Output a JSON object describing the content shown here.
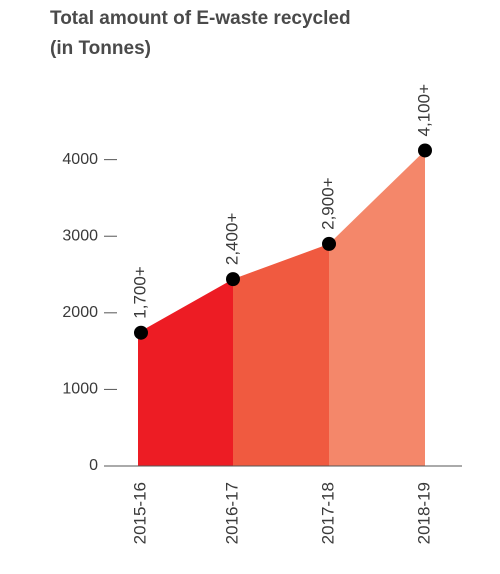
{
  "chart_data": {
    "type": "area",
    "title": [
      "Total amount of E-waste recycled",
      "(in Tonnes)"
    ],
    "categories": [
      "2015-16",
      "2016-17",
      "2017-18",
      "2018-19"
    ],
    "values": [
      1740,
      2440,
      2900,
      4120
    ],
    "value_labels": [
      "1,700+",
      "2,400+",
      "2,900+",
      "4,100+"
    ],
    "segment_colors": [
      "#ed1c24",
      "#f05a40",
      "#f4876a"
    ],
    "marker_color": "#000000",
    "ylim": [
      0,
      4400
    ],
    "yticks": [
      0,
      1000,
      2000,
      3000,
      4000
    ]
  }
}
